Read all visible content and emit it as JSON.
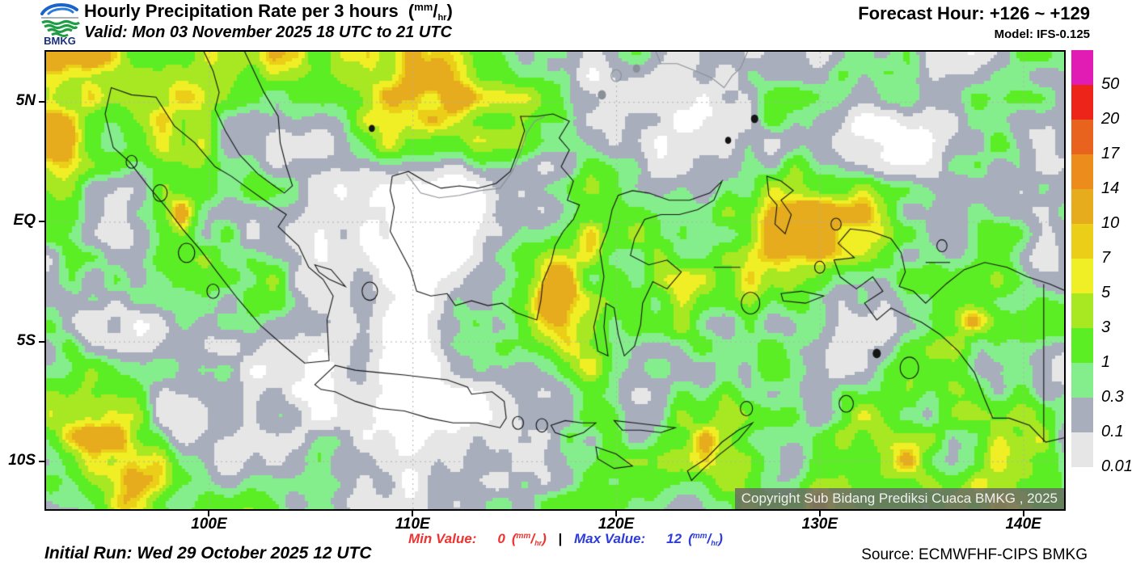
{
  "header": {
    "logo_text": "BMKG",
    "title": {
      "prefix": "Hourly Precipitation Rate per 3 hours",
      "open": "(",
      "num": "mm",
      "slash": "/",
      "den": "hr",
      "close": ")"
    },
    "valid": "Valid: Mon 03 November 2025 18 UTC to 21 UTC",
    "forecast_hour": "Forecast Hour: +126 ~ +129",
    "model": "Model: IFS-0.125"
  },
  "map": {
    "copyright": "Copyright Sub Bidang Prediksi Cuaca BMKG , 2025",
    "lat_ticks": [
      {
        "label": "5N",
        "deg": 5
      },
      {
        "label": "EQ",
        "deg": 0
      },
      {
        "label": "5S",
        "deg": -5
      },
      {
        "label": "10S",
        "deg": -10
      }
    ],
    "lon_ticks": [
      {
        "label": "100E",
        "deg": 100
      },
      {
        "label": "110E",
        "deg": 110
      },
      {
        "label": "120E",
        "deg": 120
      },
      {
        "label": "130E",
        "deg": 130
      },
      {
        "label": "140E",
        "deg": 140
      }
    ]
  },
  "legend": {
    "labels": [
      "50",
      "20",
      "17",
      "14",
      "10",
      "7",
      "5",
      "3",
      "1",
      "0.3",
      "0.1",
      "0.01"
    ],
    "colors": [
      "#e01cb5",
      "#ed2419",
      "#e8641e",
      "#ec8c1c",
      "#e6ac1e",
      "#ebce18",
      "#f0ee24",
      "#a8e822",
      "#5cee24",
      "#85ee8c",
      "#a8aebc",
      "#e6e6e6"
    ]
  },
  "footer": {
    "initial_run": "Initial Run: Wed 29 October 2025 12 UTC",
    "min_label": "Min Value:",
    "min_value": "0",
    "max_label": "Max Value:",
    "max_value": "12",
    "separator": "|",
    "unit": {
      "open": "(",
      "num": "mm",
      "slash": "/",
      "den": "hr",
      "close": ")"
    },
    "min_color": "#ee3431",
    "max_color": "#2e3cd8",
    "source": "Source: ECMWFHF-CIPS BMKG"
  }
}
